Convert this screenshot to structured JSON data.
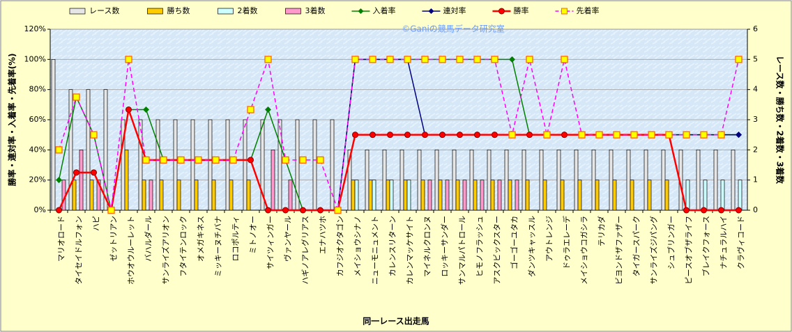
{
  "chart_data": {
    "type": "combo",
    "annotation": "©Ganiの競馬データ研究室",
    "x_label": "同一レース出走馬",
    "y_label": "勝率・連対率・入着率・先着率(%)",
    "y2_label": "レース数・勝ち数・2着数・3着数",
    "grid": true,
    "legend": "top",
    "categories": [
      "マリオロード",
      "タイセイドルフォン",
      "ハピ",
      "ゼットリアン",
      "ホウオウルーレット",
      "バハルダール",
      "サンライズアリオン",
      "フタイテンロック",
      "オメガキネス",
      "ミッキーヌチバナ",
      "ロコポルティ",
      "ミトノオー",
      "サイツィンガー",
      "ヴァンヤール",
      "ハギノアレグリアス",
      "エナハツホ",
      "カフジオクタゴン",
      "メイショウシナノ",
      "ニューモニュメント",
      "カレンスリターン",
      "カレンマッケサイト",
      "マイネルクロンヌ",
      "ロッキーサンダー",
      "サンマルパトロール",
      "ヒモノフラッシュ",
      "アスクビックスター",
      "ゴーゴーユタカ",
      "ダンツキャッスル",
      "アウトレンジ",
      "ドゥラエレーデ",
      "メイショウコガシラ",
      "テリカダ",
      "ビヨンドザファザー",
      "タイガースパーク",
      "サンライズジパング",
      "シュブリンガー",
      "ピースオブザライフ",
      "ブレイクフォース",
      "ナチュラルハイ",
      "クラヴィコード"
    ],
    "ylim": [
      0,
      120
    ],
    "yticks": [
      {
        "value": 0,
        "label": "0%"
      },
      {
        "value": 20,
        "label": "20%"
      },
      {
        "value": 40,
        "label": "40%"
      },
      {
        "value": 60,
        "label": "60%"
      },
      {
        "value": 80,
        "label": "80%"
      },
      {
        "value": 100,
        "label": "100%"
      },
      {
        "value": 120,
        "label": "120%"
      }
    ],
    "y2lim": [
      0,
      6
    ],
    "y2ticks": [
      0,
      1,
      2,
      3,
      4,
      5,
      6
    ],
    "series": [
      {
        "name": "レース数",
        "type": "bar",
        "axis": "y2",
        "color": "#e6e6e6",
        "values": [
          5,
          4,
          4,
          4,
          3,
          3,
          3,
          3,
          3,
          3,
          3,
          3,
          3,
          3,
          3,
          3,
          3,
          2,
          2,
          2,
          2,
          2,
          2,
          2,
          2,
          2,
          2,
          2,
          2,
          2,
          2,
          2,
          2,
          2,
          2,
          2,
          2,
          2,
          2,
          2
        ]
      },
      {
        "name": "勝ち数",
        "type": "bar",
        "axis": "y2",
        "color": "#ffcc00",
        "values": [
          0,
          1,
          1,
          0,
          2,
          1,
          1,
          1,
          1,
          1,
          1,
          1,
          0,
          0,
          0,
          0,
          0,
          1,
          1,
          1,
          1,
          1,
          1,
          1,
          1,
          1,
          1,
          1,
          1,
          1,
          1,
          1,
          1,
          1,
          1,
          1,
          0,
          0,
          0,
          0
        ]
      },
      {
        "name": "2着数",
        "type": "bar",
        "axis": "y2",
        "color": "#ccffff",
        "values": [
          0,
          0,
          0,
          0,
          0,
          0,
          0,
          0,
          0,
          0,
          0,
          0,
          0,
          0,
          0,
          0,
          0,
          1,
          1,
          1,
          1,
          0,
          0,
          0,
          0,
          0,
          0,
          0,
          0,
          0,
          0,
          0,
          0,
          0,
          0,
          0,
          1,
          1,
          1,
          1
        ]
      },
      {
        "name": "3着数",
        "type": "bar",
        "axis": "y2",
        "color": "#ff99cc",
        "values": [
          1,
          2,
          1,
          0,
          0,
          1,
          0,
          0,
          0,
          0,
          0,
          0,
          2,
          1,
          0,
          0,
          0,
          0,
          0,
          0,
          0,
          1,
          1,
          1,
          1,
          1,
          1,
          0,
          0,
          0,
          0,
          0,
          0,
          0,
          0,
          0,
          0,
          0,
          0,
          0
        ]
      },
      {
        "name": "入着率",
        "type": "line",
        "color": "#008000",
        "marker": "diamond",
        "dashed": false,
        "values": [
          20,
          75,
          50,
          0,
          66.7,
          66.7,
          33.3,
          33.3,
          33.3,
          33.3,
          33.3,
          33.3,
          66.7,
          33.3,
          0,
          0,
          0,
          100,
          100,
          100,
          100,
          100,
          100,
          100,
          100,
          100,
          100,
          50,
          50,
          50,
          50,
          50,
          50,
          50,
          50,
          50,
          50,
          50,
          50,
          50
        ]
      },
      {
        "name": "連対率",
        "type": "line",
        "color": "#000080",
        "marker": "diamond",
        "dashed": false,
        "values": [
          0,
          25,
          25,
          0,
          66.7,
          33.3,
          33.3,
          33.3,
          33.3,
          33.3,
          33.3,
          33.3,
          0,
          0,
          0,
          0,
          0,
          100,
          100,
          100,
          100,
          50,
          50,
          50,
          50,
          50,
          50,
          50,
          50,
          50,
          50,
          50,
          50,
          50,
          50,
          50,
          50,
          50,
          50,
          50
        ]
      },
      {
        "name": "勝率",
        "type": "line",
        "color": "#ff0000",
        "marker": "circle",
        "dashed": false,
        "values": [
          0,
          25,
          25,
          0,
          66.7,
          33.3,
          33.3,
          33.3,
          33.3,
          33.3,
          33.3,
          33.3,
          0,
          0,
          0,
          0,
          0,
          50,
          50,
          50,
          50,
          50,
          50,
          50,
          50,
          50,
          50,
          50,
          50,
          50,
          50,
          50,
          50,
          50,
          50,
          50,
          0,
          0,
          0,
          0
        ]
      },
      {
        "name": "先着率",
        "type": "line",
        "color": "#ff00ff",
        "marker": "square",
        "dashed": true,
        "values": [
          40,
          75,
          50,
          0,
          100,
          33.3,
          33.3,
          33.3,
          33.3,
          33.3,
          33.3,
          66.7,
          100,
          33.3,
          33.3,
          33.3,
          0,
          100,
          100,
          100,
          100,
          100,
          100,
          100,
          100,
          100,
          50,
          100,
          50,
          100,
          50,
          50,
          50,
          50,
          50,
          50,
          50,
          50,
          50,
          100
        ]
      }
    ]
  }
}
